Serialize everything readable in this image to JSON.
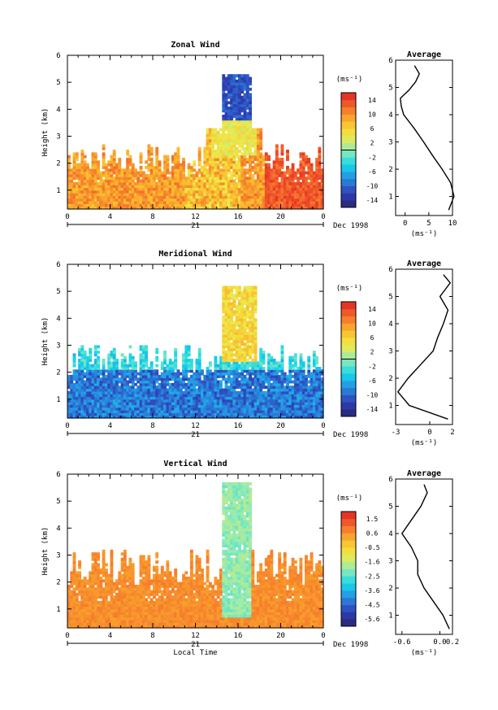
{
  "chart_data": [
    {
      "type": "heatmap",
      "title": "Zonal Wind",
      "ylabel": "Height (km)",
      "x_ticks": [
        "0",
        "4",
        "8",
        "12",
        "16",
        "20",
        "0"
      ],
      "day_label": "21",
      "date_label": "Dec 1998",
      "y_ticks": [
        "1",
        "2",
        "3",
        "4",
        "5",
        "6"
      ],
      "xlim": [
        0,
        24
      ],
      "ylim": [
        0.3,
        6
      ],
      "colorbar": {
        "unit": "(ms⁻¹)",
        "ticks": [
          "14",
          "10",
          "6",
          "2",
          "-2",
          "-6",
          "-10",
          "-14"
        ],
        "range": [
          -16,
          16
        ],
        "zero_line": 0
      },
      "field_summary": {
        "description_by_region": [
          {
            "hours": [
              0,
              14
            ],
            "heights_km": [
              0.3,
              2.3
            ],
            "value_ms": 9
          },
          {
            "hours": [
              14.5,
              17
            ],
            "heights_km": [
              3.5,
              5.2
            ],
            "value_ms": -10
          },
          {
            "hours": [
              13,
              17
            ],
            "heights_km": [
              0.3,
              3.5
            ],
            "value_ms": 1
          },
          {
            "hours": [
              18.5,
              24
            ],
            "heights_km": [
              0.3,
              2.0
            ],
            "value_ms": 14
          }
        ]
      },
      "average_profile": {
        "title": "Average",
        "xlabel": "(ms⁻¹)",
        "x_ticks": [
          "0",
          "5",
          "10"
        ],
        "xlim": [
          -2,
          10
        ],
        "heights_km": [
          0.5,
          1.0,
          1.5,
          2.0,
          2.5,
          3.0,
          3.5,
          4.0,
          4.3,
          4.6,
          4.9,
          5.2,
          5.5,
          5.8
        ],
        "values_ms": [
          9.2,
          10.3,
          9.6,
          7.8,
          5.8,
          3.9,
          1.9,
          -0.3,
          -0.8,
          -1.0,
          0.8,
          2.2,
          3.0,
          2.0
        ]
      }
    },
    {
      "type": "heatmap",
      "title": "Meridional Wind",
      "ylabel": "Height (km)",
      "x_ticks": [
        "0",
        "4",
        "8",
        "12",
        "16",
        "20",
        "0"
      ],
      "day_label": "21",
      "date_label": "Dec 1998",
      "y_ticks": [
        "1",
        "2",
        "3",
        "4",
        "5",
        "6"
      ],
      "xlim": [
        0,
        24
      ],
      "ylim": [
        0.3,
        6
      ],
      "colorbar": {
        "unit": "(ms⁻¹)",
        "ticks": [
          "14",
          "10",
          "6",
          "2",
          "-2",
          "-6",
          "-10",
          "-14"
        ],
        "range": [
          -16,
          16
        ],
        "zero_line": 0
      },
      "field_summary": {
        "description_by_region": [
          {
            "hours": [
              0,
              24
            ],
            "heights_km": [
              0.3,
              2.0
            ],
            "value_ms": -7
          },
          {
            "hours": [
              14.5,
              17
            ],
            "heights_km": [
              2.5,
              5.2
            ],
            "value_ms": 5
          },
          {
            "hours": [
              0,
              24
            ],
            "heights_km": [
              2.0,
              3.0
            ],
            "value_ms": -2
          }
        ]
      },
      "average_profile": {
        "title": "Average",
        "xlabel": "(ms⁻¹)",
        "x_ticks": [
          "-3",
          "0",
          "2"
        ],
        "xlim": [
          -3,
          2
        ],
        "heights_km": [
          0.5,
          1.0,
          1.5,
          2.0,
          2.5,
          3.0,
          3.5,
          4.0,
          4.5,
          5.0,
          5.5,
          5.8
        ],
        "values_ms": [
          1.6,
          -1.8,
          -2.8,
          -1.9,
          -0.8,
          0.3,
          0.7,
          1.2,
          1.6,
          0.9,
          1.8,
          1.2
        ]
      }
    },
    {
      "type": "heatmap",
      "title": "Vertical Wind",
      "ylabel": "Height (km)",
      "xlabel": "Local Time",
      "x_ticks": [
        "0",
        "4",
        "8",
        "12",
        "16",
        "20",
        "0"
      ],
      "day_label": "21",
      "date_label": "Dec 1998",
      "y_ticks": [
        "1",
        "2",
        "3",
        "4",
        "5",
        "6"
      ],
      "xlim": [
        0,
        24
      ],
      "ylim": [
        0.3,
        6
      ],
      "colorbar": {
        "unit": "(ms⁻¹)",
        "ticks": [
          "1.5",
          "0.6",
          "-0.5",
          "-1.6",
          "-2.5",
          "-3.6",
          "-4.5",
          "-5.6"
        ],
        "range": [
          -6,
          2
        ]
      },
      "field_summary": {
        "description_by_region": [
          {
            "hours": [
              0,
              24
            ],
            "heights_km": [
              0.3,
              2.5
            ],
            "value_ms": 0.4
          },
          {
            "hours": [
              14.5,
              17
            ],
            "heights_km": [
              0.5,
              5.5
            ],
            "value_ms": -1.8
          }
        ]
      },
      "average_profile": {
        "title": "Average",
        "xlabel": "(ms⁻¹)",
        "x_ticks": [
          "-0.6",
          "0.0",
          "0.2"
        ],
        "xlim": [
          -0.7,
          0.2
        ],
        "heights_km": [
          0.5,
          1.0,
          1.5,
          2.0,
          2.5,
          3.0,
          3.5,
          4.0,
          4.5,
          5.0,
          5.5,
          5.8
        ],
        "values_ms": [
          0.15,
          0.05,
          -0.1,
          -0.25,
          -0.35,
          -0.35,
          -0.45,
          -0.6,
          -0.45,
          -0.3,
          -0.2,
          -0.25
        ]
      }
    }
  ]
}
